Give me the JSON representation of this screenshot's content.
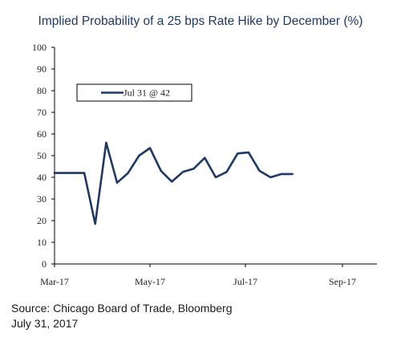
{
  "chart_data": {
    "type": "line",
    "title": "Implied Probability of a 25 bps Rate Hike by December (%)",
    "x_tick_labels": [
      "Mar-17",
      "May-17",
      "Jul-17",
      "Sep-17"
    ],
    "ylim": [
      0,
      100
    ],
    "y_ticks": [
      0,
      10,
      20,
      30,
      40,
      50,
      60,
      70,
      80,
      90,
      100
    ],
    "legend": {
      "placement": "top-left",
      "label": "Jul 31 @ 42"
    },
    "series": [
      {
        "name": "Jul 31 @ 42",
        "x": [
          "2017-03-01",
          "2017-03-20",
          "2017-03-27",
          "2017-04-03",
          "2017-04-10",
          "2017-04-17",
          "2017-04-24",
          "2017-05-01",
          "2017-05-08",
          "2017-05-15",
          "2017-05-22",
          "2017-05-29",
          "2017-06-05",
          "2017-06-12",
          "2017-06-19",
          "2017-06-26",
          "2017-07-03",
          "2017-07-10",
          "2017-07-17",
          "2017-07-24",
          "2017-07-31"
        ],
        "values": [
          42,
          42,
          18.5,
          56,
          37.5,
          42,
          50,
          53.5,
          43,
          38,
          42.5,
          44,
          49,
          40,
          42.5,
          51,
          51.5,
          43,
          40,
          41.5,
          41.5
        ]
      }
    ],
    "grid": false,
    "color": "#1f3864"
  },
  "footer": {
    "source": "Source: Chicago Board of Trade, Bloomberg",
    "date": "July 31, 2017"
  }
}
